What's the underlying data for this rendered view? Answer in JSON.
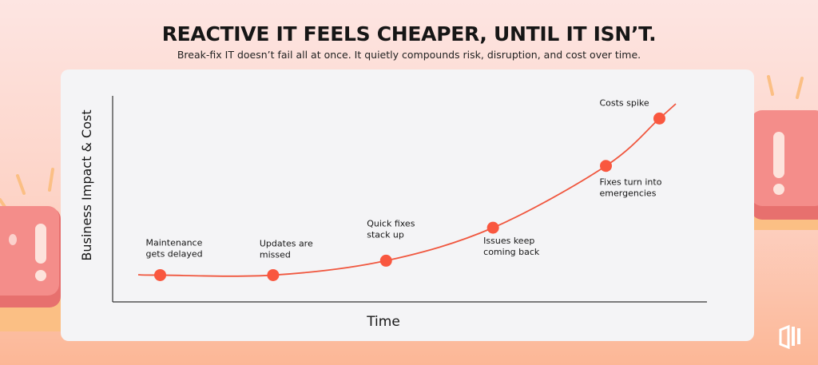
{
  "header": {
    "title": "REACTIVE IT FEELS CHEAPER, UNTIL IT ISN’T.",
    "subtitle": "Break-fix IT doesn’t fail all at once. It quietly compounds risk, disruption, and cost over time."
  },
  "colors": {
    "curve": "#f0573f",
    "point": "#f9573f",
    "axis": "#333333",
    "card": "#f4f4f6",
    "alert": "#f48d8a",
    "base": "#fbbf84"
  },
  "icons": [
    "alert-button-icon",
    "alert-button-icon",
    "brand-logo-icon"
  ],
  "chart_data": {
    "type": "line",
    "title": "",
    "xlabel": "Time",
    "ylabel": "Business Impact & Cost",
    "xlim": [
      0,
      1
    ],
    "ylim": [
      0,
      1
    ],
    "grid": false,
    "ticks": false,
    "series": [
      {
        "points": [
          {
            "label": "Maintenance gets delayed",
            "x": 0.08,
            "y": 0.13
          },
          {
            "label": "Updates are missed",
            "x": 0.27,
            "y": 0.13
          },
          {
            "label": "Quick fixes stack up",
            "x": 0.46,
            "y": 0.2
          },
          {
            "label": "Issues keep coming back",
            "x": 0.64,
            "y": 0.36
          },
          {
            "label": "Fixes turn into emergencies",
            "x": 0.83,
            "y": 0.66
          },
          {
            "label": "Costs spike",
            "x": 0.92,
            "y": 0.89
          }
        ]
      }
    ]
  }
}
